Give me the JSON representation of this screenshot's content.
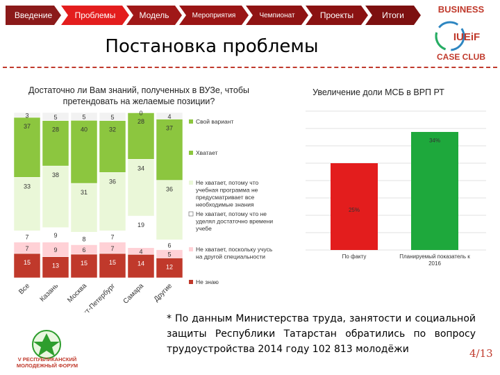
{
  "nav": {
    "items": [
      {
        "label": "Введение",
        "color": "#8b1a1a"
      },
      {
        "label": "Проблемы",
        "color": "#e31d1d"
      },
      {
        "label": "Модель",
        "color": "#a01818"
      },
      {
        "label": "Мероприятия",
        "color": "#9a1515"
      },
      {
        "label": "Чемпионат",
        "color": "#8f1313"
      },
      {
        "label": "Проекты",
        "color": "#8a1212"
      },
      {
        "label": "Итоги",
        "color": "#7d1010"
      }
    ]
  },
  "logo": {
    "top": "BUSINESS",
    "mid": "IUEiF",
    "bottom": "CASE CLUB"
  },
  "page_title": "Постановка проблемы",
  "chart_left_title": "Достаточно ли Вам знаний, полученных в ВУЗе, чтобы претендовать на желаемые позиции?",
  "chart_right_title": "Увеличение доли МСБ в ВРП РТ",
  "chart_data": [
    {
      "type": "bar",
      "stacked": true,
      "categories": [
        "Все",
        "Казань",
        "Москва",
        "Санкт-Петербург",
        "Самара",
        "Другие"
      ],
      "series": [
        {
          "name": "Не знаю",
          "color": "#c0392b",
          "values": [
            15,
            13,
            15,
            15,
            14,
            12
          ]
        },
        {
          "name": "Не хватает, поскольку учусь на другой специальности",
          "color": "#ffd1d6",
          "values": [
            7,
            9,
            6,
            7,
            4,
            5
          ]
        },
        {
          "name": "Не хватает, потому что не уделял достаточно времени учебе",
          "color": "#ffffff",
          "values": [
            7,
            9,
            8,
            7,
            19,
            6
          ]
        },
        {
          "name": "Не хватает, потому что учебная программа не предусматривает все необходимые знания",
          "color": "#eaf7d8",
          "values": [
            33,
            38,
            31,
            36,
            34,
            36
          ]
        },
        {
          "name": "Хватает",
          "color": "#8cc63f",
          "values": [
            37,
            28,
            40,
            32,
            28,
            37
          ]
        },
        {
          "name": "Свой вариант",
          "color": "#f2f2f2",
          "values": [
            3,
            5,
            5,
            5,
            0,
            4
          ]
        }
      ],
      "legend": [
        {
          "label": "Свой вариант",
          "color": "#8cc63f"
        },
        {
          "label": "Хватает",
          "color": "#8cc63f"
        },
        {
          "label": "Не хватает, потому что учебная программа не предусматривает все необходимые знания",
          "color": "#eaf7d8"
        },
        {
          "label": "Не хватает, потому что не уделял достаточно времени учебе",
          "color": "#ffffff"
        },
        {
          "label": "Не хватает, поскольку учусь на другой специальности",
          "color": "#ffd1d6"
        },
        {
          "label": "Не знаю",
          "color": "#c0392b"
        }
      ]
    },
    {
      "type": "bar",
      "title": "Увеличение доли МСБ в ВРП РТ",
      "categories": [
        "По факту",
        "Планируемый показатель к 2016"
      ],
      "values": [
        25,
        34
      ],
      "labels": [
        "25%",
        "34%"
      ],
      "colors": [
        "#e31d1d",
        "#1ea83c"
      ],
      "grid": true
    }
  ],
  "footnote": "* По данным Министерства труда, занятости и социальной защиты Республики Татарстан обратились по вопросу трудоустройства 2014 году 102 813 молодёжи",
  "page_number": "4/13",
  "forum": {
    "line1": "V РЕСПУБЛИКАНСКИЙ",
    "line2": "МОЛОДЕЖНЫЙ ФОРУМ"
  }
}
